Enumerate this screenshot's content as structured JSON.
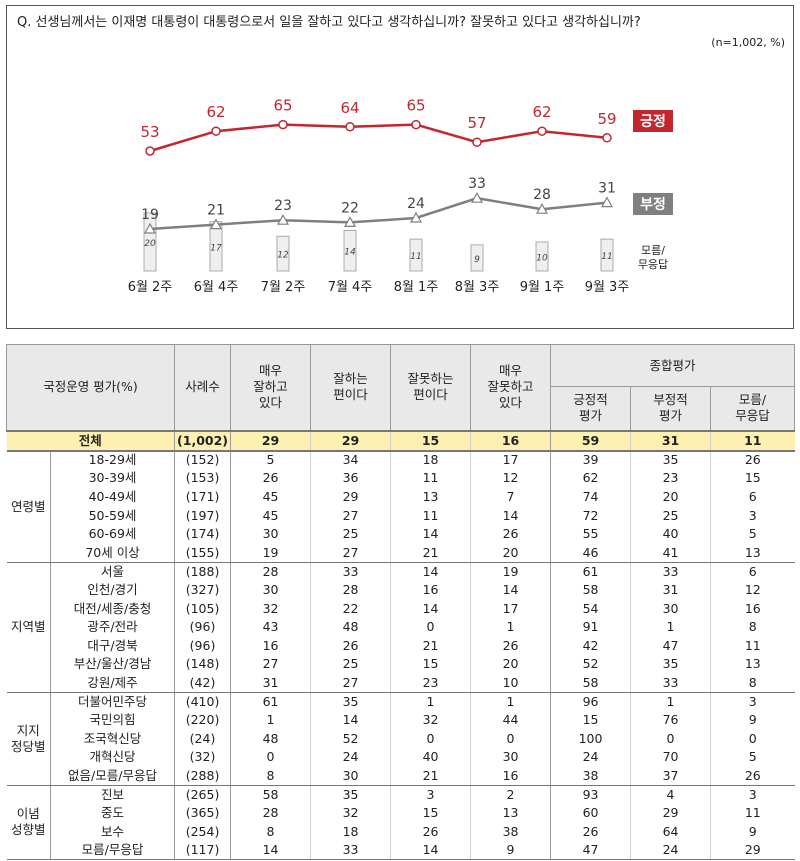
{
  "question": "Q. 선생님께서는 이재명 대통령이 대통령으로서 일을 잘하고 있다고 생각하십니까? 잘못하고 있다고 생각하십니까?",
  "sample_note": "(n=1,002,  %)",
  "colors": {
    "positive": "#c4262e",
    "negative": "#7f7f7f",
    "total_row": "#fdf0b0",
    "header": "#e9e9e9"
  },
  "chart_data": {
    "type": "line",
    "categories": [
      "6월 2주",
      "6월 4주",
      "7월 2주",
      "7월 4주",
      "8월 1주",
      "8월 3주",
      "9월 1주",
      "9월 3주"
    ],
    "series": [
      {
        "name": "긍정",
        "values": [
          53,
          62,
          65,
          64,
          65,
          57,
          62,
          59
        ],
        "color": "#c4262e",
        "kind": "line"
      },
      {
        "name": "부정",
        "values": [
          19,
          21,
          23,
          22,
          24,
          33,
          28,
          31
        ],
        "color": "#7f7f7f",
        "kind": "line"
      },
      {
        "name": "모름/\n무응답",
        "values": [
          20,
          17,
          12,
          14,
          11,
          9,
          10,
          11
        ],
        "color": "#eeeeee",
        "kind": "bar"
      }
    ],
    "dk_label_line1": "모름/",
    "dk_label_line2": "무응답",
    "grid": false
  },
  "table": {
    "header": {
      "title": "국정운영 평가(%)",
      "n": "사례수",
      "c1": [
        "매우",
        "잘하고",
        "있다"
      ],
      "c2": [
        "잘하는",
        "편이다"
      ],
      "c3": [
        "잘못하는",
        "편이다"
      ],
      "c4": [
        "매우",
        "잘못하고",
        "있다"
      ],
      "summary": "종합평가",
      "c5": [
        "긍정적",
        "평가"
      ],
      "c6": [
        "부정적",
        "평가"
      ],
      "c7": [
        "모름/",
        "무응답"
      ]
    },
    "total": {
      "label": "전체",
      "n": "(1,002)",
      "v": [
        29,
        29,
        15,
        16,
        59,
        31,
        11
      ]
    },
    "groups": [
      {
        "name": [
          "연령별"
        ],
        "rows": [
          {
            "label": "18-29세",
            "n": "(152)",
            "v": [
              5,
              34,
              18,
              17,
              39,
              35,
              26
            ]
          },
          {
            "label": "30-39세",
            "n": "(153)",
            "v": [
              26,
              36,
              11,
              12,
              62,
              23,
              15
            ]
          },
          {
            "label": "40-49세",
            "n": "(171)",
            "v": [
              45,
              29,
              13,
              7,
              74,
              20,
              6
            ]
          },
          {
            "label": "50-59세",
            "n": "(197)",
            "v": [
              45,
              27,
              11,
              14,
              72,
              25,
              3
            ]
          },
          {
            "label": "60-69세",
            "n": "(174)",
            "v": [
              30,
              25,
              14,
              26,
              55,
              40,
              5
            ]
          },
          {
            "label": "70세 이상",
            "n": "(155)",
            "v": [
              19,
              27,
              21,
              20,
              46,
              41,
              13
            ]
          }
        ]
      },
      {
        "name": [
          "지역별"
        ],
        "rows": [
          {
            "label": "서울",
            "n": "(188)",
            "v": [
              28,
              33,
              14,
              19,
              61,
              33,
              6
            ]
          },
          {
            "label": "인천/경기",
            "n": "(327)",
            "v": [
              30,
              28,
              16,
              14,
              58,
              31,
              12
            ]
          },
          {
            "label": "대전/세종/충청",
            "n": "(105)",
            "v": [
              32,
              22,
              14,
              17,
              54,
              30,
              16
            ]
          },
          {
            "label": "광주/전라",
            "n": "(96)",
            "v": [
              43,
              48,
              0,
              1,
              91,
              1,
              8
            ]
          },
          {
            "label": "대구/경북",
            "n": "(96)",
            "v": [
              16,
              26,
              21,
              26,
              42,
              47,
              11
            ]
          },
          {
            "label": "부산/울산/경남",
            "n": "(148)",
            "v": [
              27,
              25,
              15,
              20,
              52,
              35,
              13
            ]
          },
          {
            "label": "강원/제주",
            "n": "(42)",
            "v": [
              31,
              27,
              23,
              10,
              58,
              33,
              8
            ]
          }
        ]
      },
      {
        "name": [
          "지지",
          "정당별"
        ],
        "rows": [
          {
            "label": "더불어민주당",
            "n": "(410)",
            "v": [
              61,
              35,
              1,
              1,
              96,
              1,
              3
            ]
          },
          {
            "label": "국민의힘",
            "n": "(220)",
            "v": [
              1,
              14,
              32,
              44,
              15,
              76,
              9
            ]
          },
          {
            "label": "조국혁신당",
            "n": "(24)",
            "v": [
              48,
              52,
              0,
              0,
              100,
              0,
              0
            ]
          },
          {
            "label": "개혁신당",
            "n": "(32)",
            "v": [
              0,
              24,
              40,
              30,
              24,
              70,
              5
            ]
          },
          {
            "label": "없음/모름/무응답",
            "n": "(288)",
            "v": [
              8,
              30,
              21,
              16,
              38,
              37,
              26
            ]
          }
        ]
      },
      {
        "name": [
          "이념",
          "성향별"
        ],
        "rows": [
          {
            "label": "진보",
            "n": "(265)",
            "v": [
              58,
              35,
              3,
              2,
              93,
              4,
              3
            ]
          },
          {
            "label": "중도",
            "n": "(365)",
            "v": [
              28,
              32,
              15,
              13,
              60,
              29,
              11
            ]
          },
          {
            "label": "보수",
            "n": "(254)",
            "v": [
              8,
              18,
              26,
              38,
              26,
              64,
              9
            ]
          },
          {
            "label": "모름/무응답",
            "n": "(117)",
            "v": [
              14,
              33,
              14,
              9,
              47,
              24,
              29
            ]
          }
        ]
      }
    ]
  }
}
